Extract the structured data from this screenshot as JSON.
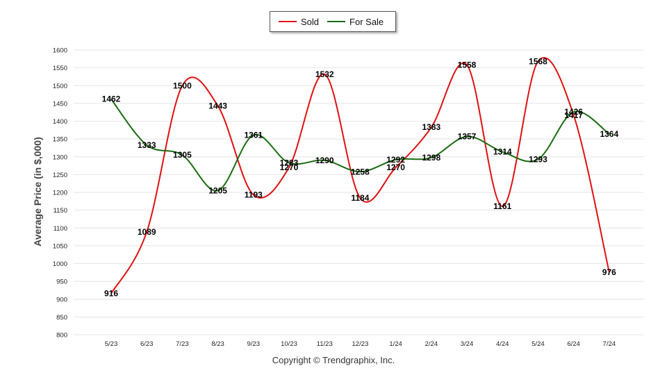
{
  "chart_data": {
    "type": "line",
    "xlabel": "",
    "ylabel": "Average Price (in $,000)",
    "ylim": [
      800,
      1600
    ],
    "yticks": [
      800,
      850,
      900,
      950,
      1000,
      1050,
      1100,
      1150,
      1200,
      1250,
      1300,
      1350,
      1400,
      1450,
      1500,
      1550,
      1600
    ],
    "grid": true,
    "legend_position": "top-center",
    "categories": [
      "5/23",
      "6/23",
      "7/23",
      "8/23",
      "9/23",
      "10/23",
      "11/23",
      "12/23",
      "1/24",
      "2/24",
      "3/24",
      "4/24",
      "5/24",
      "6/24",
      "7/24"
    ],
    "series": [
      {
        "name": "Sold",
        "color": "#e01010",
        "values": [
          916,
          1089,
          1500,
          1443,
          1193,
          1270,
          1532,
          1184,
          1270,
          1383,
          1558,
          1161,
          1568,
          1417,
          976
        ]
      },
      {
        "name": "For Sale",
        "color": "#1a6b10",
        "values": [
          1462,
          1333,
          1305,
          1205,
          1361,
          1283,
          1290,
          1258,
          1292,
          1298,
          1357,
          1314,
          1293,
          1426,
          1364
        ]
      }
    ]
  },
  "footer": {
    "copyright": "Copyright © Trendgraphix, Inc."
  }
}
